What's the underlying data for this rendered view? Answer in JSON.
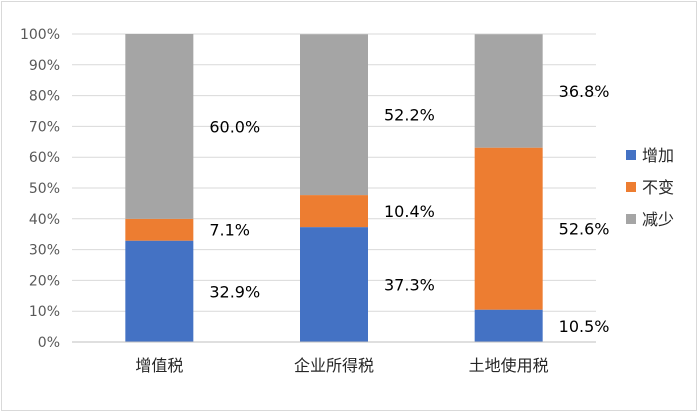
{
  "chart_data": {
    "type": "bar",
    "stacked": true,
    "percent_stacked": true,
    "categories": [
      "增值税",
      "企业所得税",
      "土地使用税"
    ],
    "series": [
      {
        "name": "增加",
        "values": [
          32.9,
          37.3,
          10.5
        ],
        "labels": [
          "32.9%",
          "37.3%",
          "10.5%"
        ],
        "color": "#4472c4"
      },
      {
        "name": "不变",
        "values": [
          7.1,
          10.4,
          52.6
        ],
        "labels": [
          "7.1%",
          "10.4%",
          "52.6%"
        ],
        "color": "#ed7d31"
      },
      {
        "name": "减少",
        "values": [
          60.0,
          52.2,
          36.8
        ],
        "labels": [
          "60.0%",
          "52.2%",
          "36.8%"
        ],
        "color": "#a5a5a5"
      }
    ],
    "y_ticks": [
      "0%",
      "10%",
      "20%",
      "30%",
      "40%",
      "50%",
      "60%",
      "70%",
      "80%",
      "90%",
      "100%"
    ],
    "ylim": [
      0,
      100
    ],
    "grid": true,
    "legend": "right"
  }
}
